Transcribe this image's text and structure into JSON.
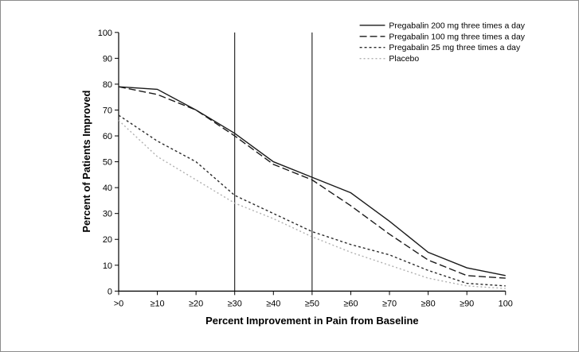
{
  "chart_data": {
    "type": "line",
    "title": "",
    "xlabel": "Percent Improvement in Pain from Baseline",
    "ylabel": "Percent of Patients Improved",
    "xlim": [
      0,
      100
    ],
    "ylim": [
      0,
      100
    ],
    "grid": false,
    "legend_position": "top-right",
    "x_values": [
      0,
      10,
      20,
      30,
      40,
      50,
      60,
      70,
      80,
      90,
      100
    ],
    "x_tick_labels": [
      ">0",
      "≥10",
      "≥20",
      "≥30",
      "≥40",
      "≥50",
      "≥60",
      "≥70",
      "≥80",
      "≥90",
      "100"
    ],
    "y_ticks": [
      0,
      10,
      20,
      30,
      40,
      50,
      60,
      70,
      80,
      90,
      100
    ],
    "reference_lines_x": [
      30,
      50
    ],
    "series": [
      {
        "name": "Pregabalin 200 mg three times a day",
        "dash": "solid",
        "color": "#1a1a1a",
        "values": [
          79,
          78,
          70,
          61,
          50,
          44,
          38,
          27,
          15,
          9,
          6
        ]
      },
      {
        "name": "Pregabalin 100 mg three times a day",
        "dash": "dashed",
        "color": "#1a1a1a",
        "values": [
          79,
          76,
          70,
          60,
          49,
          43,
          33,
          22,
          12,
          6,
          5
        ]
      },
      {
        "name": "Pregabalin 25 mg three times a day",
        "dash": "short-dash",
        "color": "#2a2a2a",
        "values": [
          68,
          58,
          50,
          37,
          30,
          23,
          18,
          14,
          8,
          3,
          2
        ]
      },
      {
        "name": "Placebo",
        "dash": "dotted",
        "color": "#b0b0b0",
        "values": [
          66,
          52,
          43,
          34,
          28,
          21,
          15,
          10,
          5,
          2,
          1
        ]
      }
    ]
  }
}
